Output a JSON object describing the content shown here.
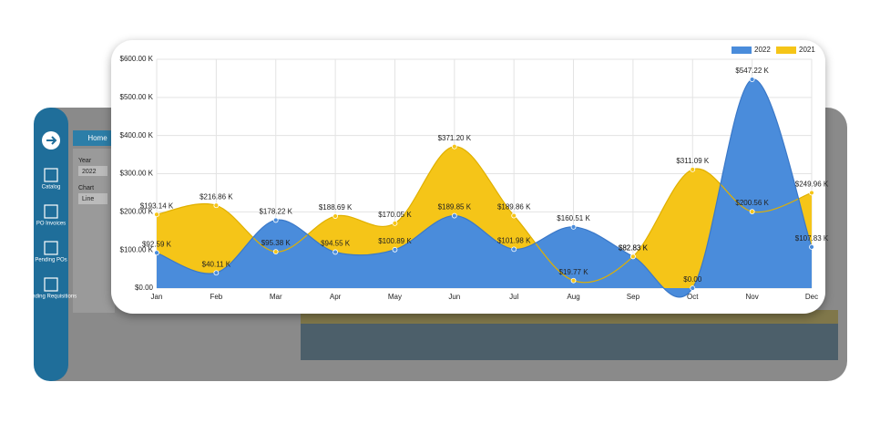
{
  "app": {
    "tab": "Home",
    "year_label": "Year",
    "year_value": "2022",
    "chart_label": "Chart",
    "chart_value": "Line",
    "nav": [
      "Catalog",
      "PO Invoices",
      "Pending POs",
      "Pending Requisitions"
    ]
  },
  "chart_data": {
    "type": "area",
    "categories": [
      "Jan",
      "Feb",
      "Mar",
      "Apr",
      "May",
      "Jun",
      "Jul",
      "Aug",
      "Sep",
      "Oct",
      "Nov",
      "Dec"
    ],
    "series": [
      {
        "name": "2022",
        "color": "#4a8cdb",
        "values": [
          92.59,
          40.11,
          178.22,
          94.55,
          100.89,
          189.85,
          101.98,
          160.51,
          82.83,
          0,
          547.22,
          107.83
        ],
        "value_labels": [
          "$92.59 K",
          "$40.11 K",
          "$178.22 K",
          "$94.55 K",
          "$100.89 K",
          "$189.85 K",
          "$101.98 K",
          "$160.51 K",
          "$82.83 K",
          "$0.00",
          "$547.22 K",
          "$107.83 K"
        ]
      },
      {
        "name": "2021",
        "color": "#f5c518",
        "values": [
          193.14,
          216.86,
          95.38,
          188.69,
          170.05,
          371.2,
          189.86,
          19.77,
          82.83,
          311.09,
          200.56,
          249.96
        ],
        "value_labels": [
          "$193.14 K",
          "$216.86 K",
          "$95.38 K",
          "$188.69 K",
          "$170.05 K",
          "$371.20 K",
          "$189.86 K",
          "$19.77 K",
          "$82.83 K",
          "$311.09 K",
          "$200.56 K",
          "$249.96 K"
        ]
      }
    ],
    "ylim": [
      0,
      600
    ],
    "yticks": [
      {
        "value": 0,
        "label": "$0.00"
      },
      {
        "value": 100,
        "label": "$100.00 K"
      },
      {
        "value": 200,
        "label": "$200.00 K"
      },
      {
        "value": 300,
        "label": "$300.00 K"
      },
      {
        "value": 400,
        "label": "$400.00 K"
      },
      {
        "value": 500,
        "label": "$500.00 K"
      },
      {
        "value": 600,
        "label": "$600.00 K"
      }
    ],
    "grid": true,
    "legend": "top-right"
  }
}
